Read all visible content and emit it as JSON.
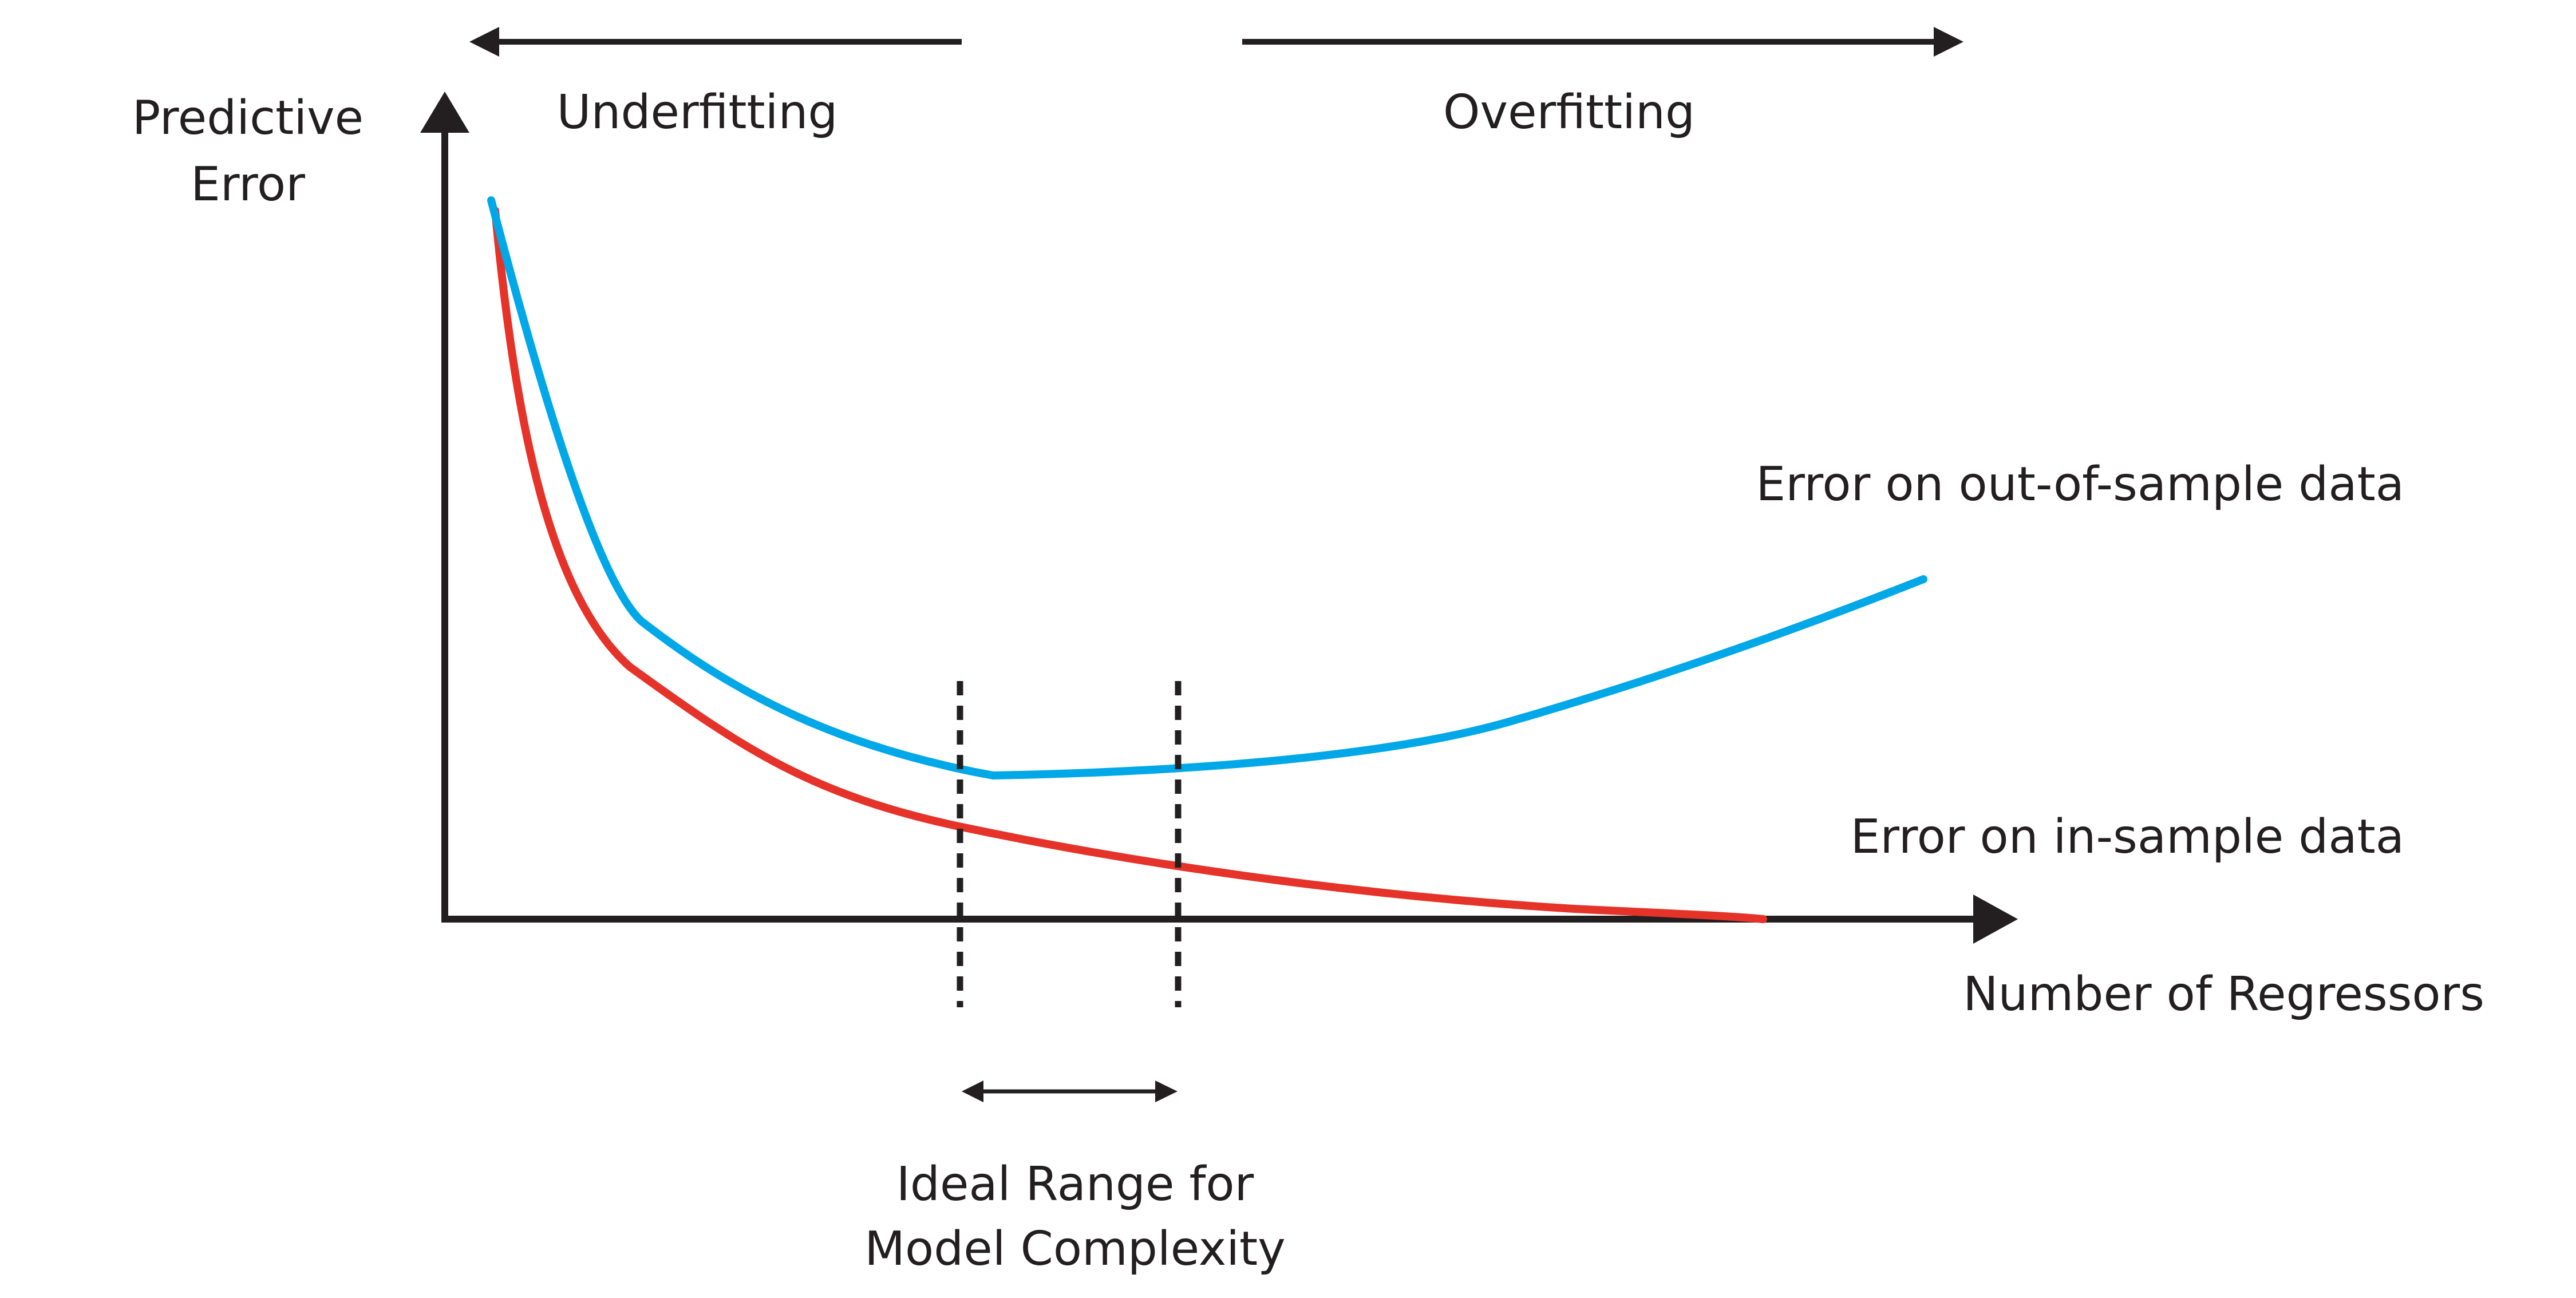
{
  "labels": {
    "y_axis_line1": "Predictive",
    "y_axis_line2": "Error",
    "x_axis": "Number of Regressors",
    "underfitting": "Underfitting",
    "overfitting": "Overfitting",
    "out_of_sample": "Error on out-of-sample data",
    "in_sample": "Error on in-sample data",
    "ideal_line1": "Ideal Range for",
    "ideal_line2": "Model Complexity"
  },
  "colors": {
    "out_of_sample_curve": "#00a8e8",
    "in_sample_curve": "#e5332a",
    "axis": "#231f20",
    "text": "#231f20"
  }
}
